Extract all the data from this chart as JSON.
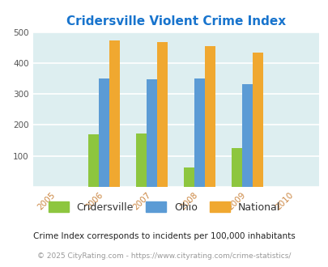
{
  "title": "Cridersville Violent Crime Index",
  "title_color": "#1874cd",
  "years": [
    2006,
    2007,
    2008,
    2009
  ],
  "cridersville": [
    170,
    173,
    62,
    125
  ],
  "ohio": [
    351,
    347,
    350,
    332
  ],
  "national": [
    473,
    468,
    455,
    433
  ],
  "bar_colors": {
    "cridersville": "#8dc63f",
    "ohio": "#5b9bd5",
    "national": "#f0a830"
  },
  "xlim": [
    2004.5,
    2010.5
  ],
  "ylim": [
    0,
    500
  ],
  "yticks": [
    0,
    100,
    200,
    300,
    400,
    500
  ],
  "xticks": [
    2005,
    2006,
    2007,
    2008,
    2009,
    2010
  ],
  "background_color": "#ddeef0",
  "grid_color": "#ffffff",
  "bar_width": 0.22,
  "legend_labels": [
    "Cridersville",
    "Ohio",
    "National"
  ],
  "footnote1": "Crime Index corresponds to incidents per 100,000 inhabitants",
  "footnote2": "© 2025 CityRating.com - https://www.cityrating.com/crime-statistics/",
  "footnote1_color": "#222222",
  "footnote2_color": "#999999",
  "tick_color": "#cc8844"
}
